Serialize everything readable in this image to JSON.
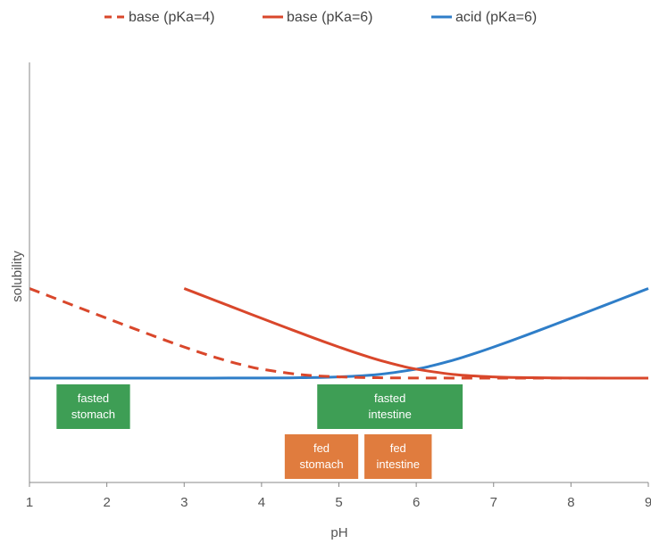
{
  "chart_data": {
    "type": "line",
    "title": "",
    "xlabel": "pH",
    "ylabel": "solubility",
    "xlim": [
      1,
      9
    ],
    "xticks": [
      "1",
      "2",
      "3",
      "4",
      "5",
      "6",
      "7",
      "8",
      "9"
    ],
    "grid": false,
    "legend_position": "top",
    "series": [
      {
        "name": "base (pKa=4)",
        "color": "#d9472b",
        "style": "dashed",
        "x": [
          1.0,
          1.2,
          1.4,
          1.6,
          1.8,
          2.0,
          2.2,
          2.4,
          2.6,
          2.8,
          3.0,
          3.2,
          3.4,
          3.6,
          3.8,
          4.0,
          4.5,
          5.0,
          5.5,
          6.0,
          6.5,
          7.0,
          7.5,
          8.0,
          8.5,
          9.0
        ],
        "y": [
          1000,
          631,
          398,
          251,
          158,
          100,
          63.1,
          39.8,
          25.1,
          15.8,
          10.0,
          6.31,
          3.98,
          2.51,
          1.58,
          1.0,
          0.316,
          0.1,
          0.0316,
          0.01,
          0.00316,
          0.001,
          0.000316,
          0.0001,
          3.16e-05,
          1e-05
        ]
      },
      {
        "name": "base (pKa=6)",
        "color": "#d9472b",
        "style": "solid",
        "x": [
          3.0,
          3.2,
          3.4,
          3.6,
          3.8,
          4.0,
          4.2,
          4.4,
          4.6,
          4.8,
          5.0,
          5.2,
          5.4,
          5.6,
          5.8,
          6.0,
          6.5,
          7.0,
          7.5,
          8.0,
          8.5,
          9.0
        ],
        "y": [
          1000,
          631,
          398,
          251,
          158,
          100,
          63.1,
          39.8,
          25.1,
          15.8,
          10.0,
          6.31,
          3.98,
          2.51,
          1.58,
          1.0,
          0.316,
          0.1,
          0.0316,
          0.01,
          0.00316,
          0.001
        ]
      },
      {
        "name": "acid (pKa=6)",
        "color": "#2f7ec8",
        "style": "solid",
        "x": [
          1.0,
          2.0,
          3.0,
          4.0,
          4.5,
          5.0,
          5.5,
          6.0,
          6.2,
          6.4,
          6.6,
          6.8,
          7.0,
          7.2,
          7.4,
          7.6,
          7.8,
          8.0,
          8.2,
          8.4,
          8.6,
          8.8,
          9.0
        ],
        "y": [
          1e-05,
          0.0001,
          0.001,
          0.01,
          0.0316,
          0.1,
          0.316,
          1.0,
          1.58,
          2.51,
          3.98,
          6.31,
          10.0,
          15.8,
          25.1,
          39.8,
          63.1,
          100,
          158,
          251,
          398,
          631,
          1000
        ]
      }
    ],
    "annotations": [
      {
        "lines": [
          "fasted",
          "stomach"
        ],
        "color": "#3e9e55",
        "x_range": [
          1.35,
          2.3
        ],
        "row": 1
      },
      {
        "lines": [
          "fasted",
          "intestine"
        ],
        "color": "#3e9e55",
        "x_range": [
          4.72,
          6.6
        ],
        "row": 1
      },
      {
        "lines": [
          "fed",
          "stomach"
        ],
        "color": "#e07c3e",
        "x_range": [
          4.3,
          5.25
        ],
        "row": 2
      },
      {
        "lines": [
          "fed",
          "intestine"
        ],
        "color": "#e07c3e",
        "x_range": [
          5.33,
          6.2
        ],
        "row": 2
      }
    ]
  }
}
